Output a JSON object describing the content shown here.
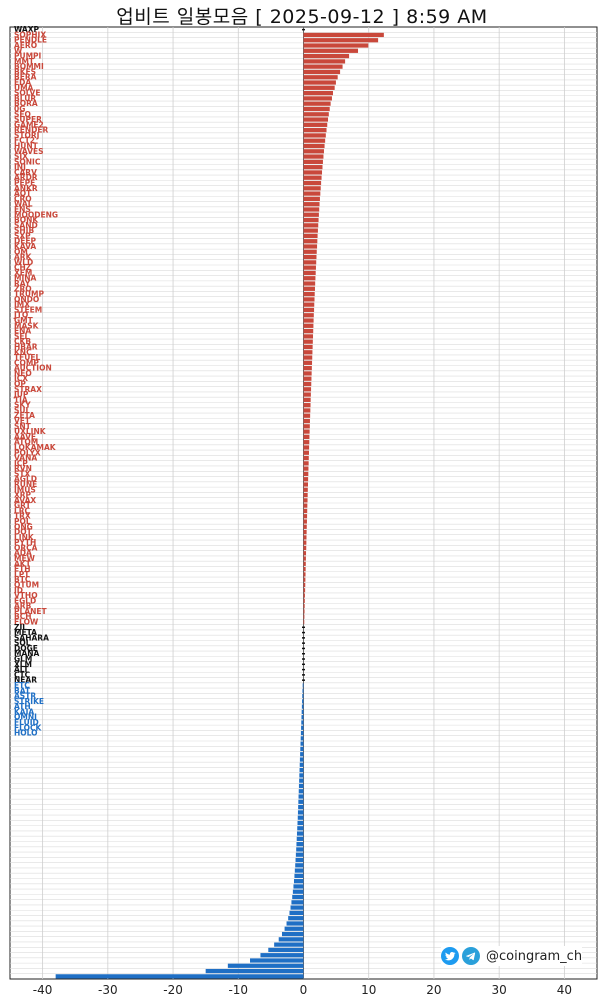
{
  "title": "업비트 일봉모음 [ 2025-09-12 ]  8:59 AM",
  "watermark": "@coingram_ch",
  "chart_data": {
    "type": "bar",
    "orientation": "horizontal",
    "xlim": [
      -45,
      45
    ],
    "xticks": [
      -40,
      -30,
      -20,
      -10,
      0,
      10,
      20,
      30,
      40
    ],
    "grid": true,
    "colors": {
      "up": "#c9483b",
      "flat": "#111111",
      "down": "#1f6fc5"
    },
    "visible_labels": [
      "WAXP",
      "SOPHIX",
      "PENDLE",
      "AERO",
      "W",
      "PUMPI",
      "MMT",
      "BOMMI",
      "BKFS",
      "BERA",
      "EDA",
      "UMA",
      "SOLVE",
      "BLUR",
      "BORA",
      "0G",
      "SEQ",
      "SUPER",
      "GAME2",
      "RENDER",
      "STORJ",
      "FCT2",
      "HUNT",
      "WAVES",
      "SIX",
      "SONIC",
      "INJ",
      "CARV",
      "ARDR",
      "PEPE",
      "ANKR",
      "AQT",
      "CRO",
      "WAL",
      "ENS",
      "MOODENG",
      "BONK",
      "SAND",
      "SHIB",
      "SXP",
      "DEEP",
      "KAVA",
      "OM",
      "ARK",
      "WLD",
      "CHZ",
      "XEM",
      "MINA",
      "RAY",
      "ZRO",
      "TRUMP",
      "ONDO",
      "IMX",
      "STEEM",
      "JTO",
      "GMT",
      "MASK",
      "ENA",
      "SEI",
      "CKB",
      "HBAR",
      "KNC",
      "TFUEL",
      "COMP",
      "AUCTION",
      "NEO",
      "ICX",
      "OP",
      "STRAX",
      "JUP",
      "TIA",
      "SKY",
      "SUI",
      "ZETA",
      "VET",
      "SNT",
      "UXLINK",
      "AAVE",
      "ATOM",
      "LOKAMAK",
      "POLYX",
      "VANA",
      "ICP",
      "RVN",
      "STX",
      "AGLD",
      "RUNE",
      "IMUS",
      "XRP",
      "AVAX",
      "GRT",
      "LRC",
      "TRX",
      "POL",
      "ONG",
      "DOT",
      "LINK",
      "PYTH",
      "ORCA",
      "ADA",
      "MEW",
      "AKT",
      "ETH",
      "LPT",
      "BTC",
      "QTUM",
      "ID",
      "VTHO",
      "EGLD",
      "ARB",
      "PLANET",
      "BCH",
      "FLOW",
      "ZIL",
      "META",
      "SAHARA",
      "SOL",
      "DOGE",
      "MANA",
      "GLM",
      "XLM",
      "ALT",
      "CTC",
      "NEAR",
      "ETC",
      "BAT",
      "ASTR",
      "STRIKE",
      "ATH",
      "KAIA",
      "OMNI",
      "FLUID",
      "FLOCK",
      "HOLO"
    ],
    "bars": [
      {
        "label": "WAXP",
        "value": 0.0
      },
      {
        "label": "SOPHIX",
        "value": 12.32
      },
      {
        "label": "PENDLE",
        "value": 11.44
      },
      {
        "label": "AERO",
        "value": 9.93
      },
      {
        "label": "W",
        "value": 8.36
      },
      {
        "label": "PUMPI",
        "value": 6.99
      },
      {
        "label": "MMT",
        "value": 6.38
      },
      {
        "label": "BOMMI",
        "value": 5.99
      },
      {
        "label": "BKFS",
        "value": 5.61
      },
      {
        "label": "BERA",
        "value": 5.24
      },
      {
        "label": "EDA",
        "value": 4.97
      },
      {
        "label": "UMA",
        "value": 4.78
      },
      {
        "label": "SOLVE",
        "value": 4.52
      },
      {
        "label": "BLUR",
        "value": 4.36
      },
      {
        "label": "BORA",
        "value": 4.16
      },
      {
        "label": "0G",
        "value": 4.02
      },
      {
        "label": "SEQ",
        "value": 3.88
      },
      {
        "label": "SUPER",
        "value": 3.76
      },
      {
        "label": "GAME2",
        "value": 3.64
      },
      {
        "label": "RENDER",
        "value": 3.53
      },
      {
        "label": "STORJ",
        "value": 3.42
      },
      {
        "label": "FCT2",
        "value": 3.32
      },
      {
        "label": "HUNT",
        "value": 3.23
      },
      {
        "label": "WAVES",
        "value": 3.14
      },
      {
        "label": "SIX",
        "value": 3.06
      },
      {
        "label": "SONIC",
        "value": 2.98
      },
      {
        "label": "INJ",
        "value": 2.91
      },
      {
        "label": "CARV",
        "value": 2.84
      },
      {
        "label": "ARDR",
        "value": 2.77
      },
      {
        "label": "PEPE",
        "value": 2.7
      },
      {
        "label": "ANKR",
        "value": 2.64
      },
      {
        "label": "AQT",
        "value": 2.58
      },
      {
        "label": "CRO",
        "value": 2.52
      },
      {
        "label": "WAL",
        "value": 2.46
      },
      {
        "label": "ENS",
        "value": 2.41
      },
      {
        "label": "MOODENG",
        "value": 2.36
      },
      {
        "label": "BONK",
        "value": 2.31
      },
      {
        "label": "SAND",
        "value": 2.26
      },
      {
        "label": "SHIB",
        "value": 2.21
      },
      {
        "label": "SXP",
        "value": 2.16
      },
      {
        "label": "DEEP",
        "value": 2.12
      },
      {
        "label": "KAVA",
        "value": 2.08
      },
      {
        "label": "OM",
        "value": 2.03
      },
      {
        "label": "ARK",
        "value": 1.99
      },
      {
        "label": "WLD",
        "value": 1.95
      },
      {
        "label": "CHZ",
        "value": 1.91
      },
      {
        "label": "XEM",
        "value": 1.87
      },
      {
        "label": "MINA",
        "value": 1.83
      },
      {
        "label": "RAY",
        "value": 1.79
      },
      {
        "label": "ZRO",
        "value": 1.76
      },
      {
        "label": "TRUMP",
        "value": 1.72
      },
      {
        "label": "ONDO",
        "value": 1.69
      },
      {
        "label": "IMX",
        "value": 1.65
      },
      {
        "label": "STEEM",
        "value": 1.62
      },
      {
        "label": "JTO",
        "value": 1.58
      },
      {
        "label": "GMT",
        "value": 1.55
      },
      {
        "label": "MASK",
        "value": 1.52
      },
      {
        "label": "ENA",
        "value": 1.49
      },
      {
        "label": "SEI",
        "value": 1.46
      },
      {
        "label": "CKB",
        "value": 1.43
      },
      {
        "label": "HBAR",
        "value": 1.4
      },
      {
        "label": "KNC",
        "value": 1.37
      },
      {
        "label": "TFUEL",
        "value": 1.34
      },
      {
        "label": "COMP",
        "value": 1.31
      },
      {
        "label": "AUCTION",
        "value": 1.28
      },
      {
        "label": "NEO",
        "value": 1.25
      },
      {
        "label": "ICX",
        "value": 1.22
      },
      {
        "label": "OP",
        "value": 1.19
      },
      {
        "label": "STRAX",
        "value": 1.16
      },
      {
        "label": "JUP",
        "value": 1.13
      },
      {
        "label": "TIA",
        "value": 1.1
      },
      {
        "label": "SKY",
        "value": 1.08
      },
      {
        "label": "SUI",
        "value": 1.05
      },
      {
        "label": "ZETA",
        "value": 1.02
      },
      {
        "label": "VET",
        "value": 0.99
      },
      {
        "label": "SNT",
        "value": 0.97
      },
      {
        "label": "UXLINK",
        "value": 0.94
      },
      {
        "label": "AAVE",
        "value": 0.91
      },
      {
        "label": "ATOM",
        "value": 0.89
      },
      {
        "label": "LOKAMAK",
        "value": 0.86
      },
      {
        "label": "POLYX",
        "value": 0.84
      },
      {
        "label": "VANA",
        "value": 0.81
      },
      {
        "label": "ICP",
        "value": 0.79
      },
      {
        "label": "RVN",
        "value": 0.76
      },
      {
        "label": "STX",
        "value": 0.74
      },
      {
        "label": "AGLD",
        "value": 0.71
      },
      {
        "label": "RUNE",
        "value": 0.69
      },
      {
        "label": "IMUS",
        "value": 0.66
      },
      {
        "label": "XRP",
        "value": 0.64
      },
      {
        "label": "AVAX",
        "value": 0.62
      },
      {
        "label": "GRT",
        "value": 0.59
      },
      {
        "label": "LRC",
        "value": 0.57
      },
      {
        "label": "TRX",
        "value": 0.55
      },
      {
        "label": "POL",
        "value": 0.53
      },
      {
        "label": "ONG",
        "value": 0.5
      },
      {
        "label": "DOT",
        "value": 0.48
      },
      {
        "label": "LINK",
        "value": 0.46
      },
      {
        "label": "PYTH",
        "value": 0.44
      },
      {
        "label": "ORCA",
        "value": 0.42
      },
      {
        "label": "ADA",
        "value": 0.39
      },
      {
        "label": "MEW",
        "value": 0.37
      },
      {
        "label": "AKT",
        "value": 0.35
      },
      {
        "label": "ETH",
        "value": 0.33
      },
      {
        "label": "LPT",
        "value": 0.31
      },
      {
        "label": "BTC",
        "value": 0.29
      },
      {
        "label": "QTUM",
        "value": 0.27
      },
      {
        "label": "ID",
        "value": 0.25
      },
      {
        "label": "VTHO",
        "value": 0.22
      },
      {
        "label": "EGLD",
        "value": 0.2
      },
      {
        "label": "ARB",
        "value": 0.18
      },
      {
        "label": "PLANET",
        "value": 0.16
      },
      {
        "label": "BCH",
        "value": 0.14
      },
      {
        "label": "FLOW",
        "value": 0.12
      },
      {
        "label": "ZIL",
        "value": 0.0
      },
      {
        "label": "META",
        "value": 0.0
      },
      {
        "label": "SAHARA",
        "value": 0.0
      },
      {
        "label": "SOL",
        "value": 0.0
      },
      {
        "label": "DOGE",
        "value": 0.0
      },
      {
        "label": "MANA",
        "value": 0.0
      },
      {
        "label": "GLM",
        "value": 0.0
      },
      {
        "label": "XLM",
        "value": 0.0
      },
      {
        "label": "ALT",
        "value": 0.0
      },
      {
        "label": "CTC",
        "value": 0.0
      },
      {
        "label": "NEAR",
        "value": 0.0
      },
      {
        "label": "ETC",
        "value": -0.13
      },
      {
        "label": "BAT",
        "value": -0.16
      },
      {
        "label": "ASTR",
        "value": -0.19
      },
      {
        "label": "STRIKE",
        "value": -0.22
      },
      {
        "label": "ATH",
        "value": -0.25
      },
      {
        "label": "KAIA",
        "value": -0.28
      },
      {
        "label": "OMNI",
        "value": -0.31
      },
      {
        "label": "FLUID",
        "value": -0.34
      },
      {
        "label": "FLOCK",
        "value": -0.37
      },
      {
        "label": "HOLO",
        "value": -0.4
      },
      {
        "label": "",
        "value": -0.43
      },
      {
        "label": "",
        "value": -0.46
      },
      {
        "label": "",
        "value": -0.49
      },
      {
        "label": "",
        "value": -0.52
      },
      {
        "label": "",
        "value": -0.55
      },
      {
        "label": "",
        "value": -0.58
      },
      {
        "label": "",
        "value": -0.61
      },
      {
        "label": "",
        "value": -0.64
      },
      {
        "label": "",
        "value": -0.67
      },
      {
        "label": "",
        "value": -0.7
      },
      {
        "label": "",
        "value": -0.73
      },
      {
        "label": "",
        "value": -0.76
      },
      {
        "label": "",
        "value": -0.79
      },
      {
        "label": "",
        "value": -0.82
      },
      {
        "label": "",
        "value": -0.85
      },
      {
        "label": "",
        "value": -0.88
      },
      {
        "label": "",
        "value": -0.92
      },
      {
        "label": "",
        "value": -0.96
      },
      {
        "label": "",
        "value": -1.0
      },
      {
        "label": "",
        "value": -1.04
      },
      {
        "label": "",
        "value": -1.08
      },
      {
        "label": "",
        "value": -1.12
      },
      {
        "label": "",
        "value": -1.17
      },
      {
        "label": "",
        "value": -1.22
      },
      {
        "label": "",
        "value": -1.27
      },
      {
        "label": "",
        "value": -1.33
      },
      {
        "label": "",
        "value": -1.39
      },
      {
        "label": "",
        "value": -1.46
      },
      {
        "label": "",
        "value": -1.54
      },
      {
        "label": "",
        "value": -1.63
      },
      {
        "label": "",
        "value": -1.73
      },
      {
        "label": "",
        "value": -1.85
      },
      {
        "label": "",
        "value": -1.99
      },
      {
        "label": "",
        "value": -2.15
      },
      {
        "label": "",
        "value": -2.35
      },
      {
        "label": "",
        "value": -2.6
      },
      {
        "label": "",
        "value": -2.9
      },
      {
        "label": "",
        "value": -3.3
      },
      {
        "label": "",
        "value": -3.8
      },
      {
        "label": "",
        "value": -4.5
      },
      {
        "label": "",
        "value": -5.4
      },
      {
        "label": "",
        "value": -6.6
      },
      {
        "label": "",
        "value": -8.2
      },
      {
        "label": "",
        "value": -11.6
      },
      {
        "label": "",
        "value": -15.0
      },
      {
        "label": "",
        "value": -38.0
      }
    ]
  }
}
